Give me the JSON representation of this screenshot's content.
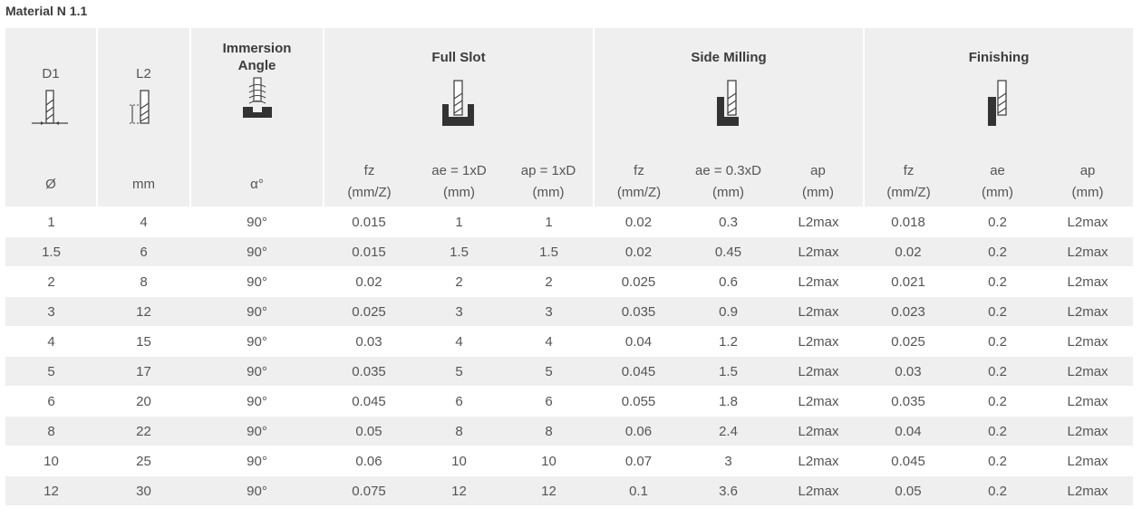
{
  "title": "Material N 1.1",
  "groups": {
    "d1": {
      "label": "D1",
      "icon": "drill-diameter-icon",
      "unit": "Ø"
    },
    "l2": {
      "label": "L2",
      "icon": "drill-length-icon",
      "unit": "mm"
    },
    "immersion": {
      "label_line1": "Immersion",
      "label_line2": "Angle",
      "icon": "ramp-immersion-icon",
      "unit": "α°"
    },
    "full_slot": {
      "label": "Full Slot",
      "icon": "full-slot-icon"
    },
    "side_milling": {
      "label": "Side Milling",
      "icon": "side-milling-icon"
    },
    "finishing": {
      "label": "Finishing",
      "icon": "finishing-icon"
    }
  },
  "subheaders": {
    "full_slot": [
      {
        "name": "fz",
        "unit": "(mm/Z)"
      },
      {
        "name": "ae = 1xD",
        "unit": "(mm)"
      },
      {
        "name": "ap = 1xD",
        "unit": "(mm)"
      }
    ],
    "side_milling": [
      {
        "name": "fz",
        "unit": "(mm/Z)"
      },
      {
        "name": "ae = 0.3xD",
        "unit": "(mm)"
      },
      {
        "name": "ap",
        "unit": "(mm)"
      }
    ],
    "finishing": [
      {
        "name": "fz",
        "unit": "(mm/Z)"
      },
      {
        "name": "ae",
        "unit": "(mm)"
      },
      {
        "name": "ap",
        "unit": "(mm)"
      }
    ]
  },
  "rows": [
    [
      "1",
      "4",
      "90°",
      "0.015",
      "1",
      "1",
      "0.02",
      "0.3",
      "L2max",
      "0.018",
      "0.2",
      "L2max"
    ],
    [
      "1.5",
      "6",
      "90°",
      "0.015",
      "1.5",
      "1.5",
      "0.02",
      "0.45",
      "L2max",
      "0.02",
      "0.2",
      "L2max"
    ],
    [
      "2",
      "8",
      "90°",
      "0.02",
      "2",
      "2",
      "0.025",
      "0.6",
      "L2max",
      "0.021",
      "0.2",
      "L2max"
    ],
    [
      "3",
      "12",
      "90°",
      "0.025",
      "3",
      "3",
      "0.035",
      "0.9",
      "L2max",
      "0.023",
      "0.2",
      "L2max"
    ],
    [
      "4",
      "15",
      "90°",
      "0.03",
      "4",
      "4",
      "0.04",
      "1.2",
      "L2max",
      "0.025",
      "0.2",
      "L2max"
    ],
    [
      "5",
      "17",
      "90°",
      "0.035",
      "5",
      "5",
      "0.045",
      "1.5",
      "L2max",
      "0.03",
      "0.2",
      "L2max"
    ],
    [
      "6",
      "20",
      "90°",
      "0.045",
      "6",
      "6",
      "0.055",
      "1.8",
      "L2max",
      "0.035",
      "0.2",
      "L2max"
    ],
    [
      "8",
      "22",
      "90°",
      "0.05",
      "8",
      "8",
      "0.06",
      "2.4",
      "L2max",
      "0.04",
      "0.2",
      "L2max"
    ],
    [
      "10",
      "25",
      "90°",
      "0.06",
      "10",
      "10",
      "0.07",
      "3",
      "L2max",
      "0.045",
      "0.2",
      "L2max"
    ],
    [
      "12",
      "30",
      "90°",
      "0.075",
      "12",
      "12",
      "0.1",
      "3.6",
      "L2max",
      "0.05",
      "0.2",
      "L2max"
    ]
  ]
}
